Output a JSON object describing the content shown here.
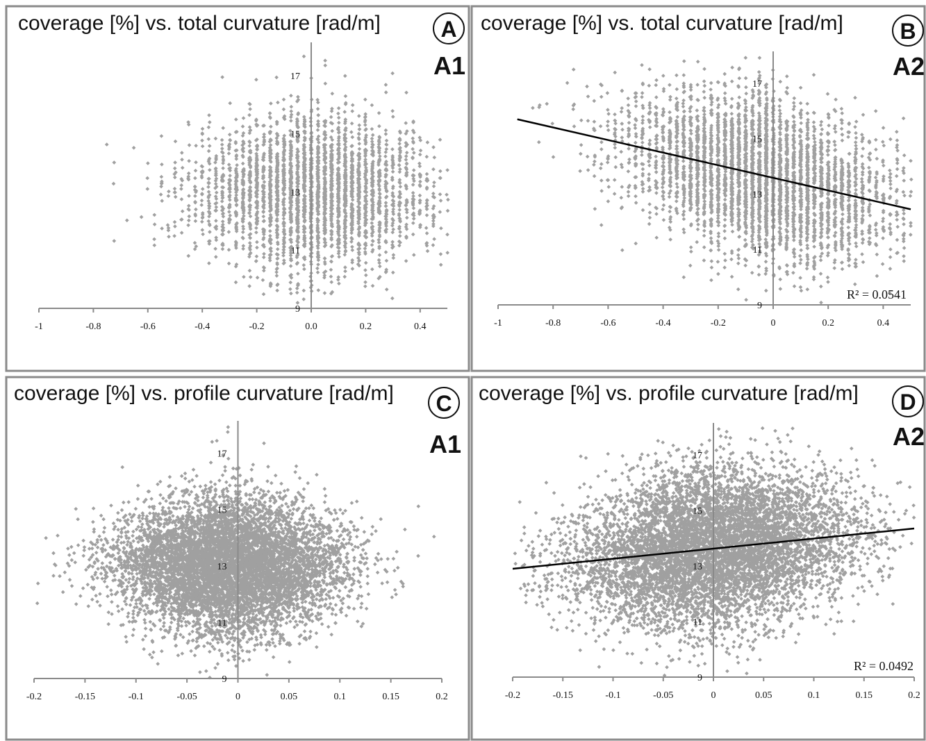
{
  "chart_data": [
    {
      "type": "scatter",
      "panel_letter": "A",
      "panel_code": "A1",
      "title": "coverage [%] vs. total curvature [rad/m]",
      "x_ticks": [
        "-1",
        "-0.8",
        "-0.6",
        "-0.4",
        "-0.2",
        "0.0",
        "0.2",
        "0.4"
      ],
      "y_ticks": [
        "9",
        "11",
        "13",
        "15",
        "17"
      ],
      "xlim": [
        -1,
        0.5
      ],
      "ylim": [
        9,
        18
      ],
      "x_step": 0.025,
      "point_color": "#a0a0a0",
      "distribution": {
        "x_center": 0.0,
        "x_spread": 0.22,
        "x_min": -0.9,
        "x_max": 0.5,
        "y_center": 13.0,
        "y_spread": 1.4
      },
      "n_points": 3200,
      "trendline": null,
      "r_squared": null
    },
    {
      "type": "scatter",
      "panel_letter": "B",
      "panel_code": "A2",
      "title": "coverage [%] vs. total curvature [rad/m]",
      "x_ticks": [
        "-1",
        "-0.8",
        "-0.6",
        "-0.4",
        "-0.2",
        "0",
        "0.2",
        "0.4"
      ],
      "y_ticks": [
        "9",
        "11",
        "13",
        "15",
        "17"
      ],
      "xlim": [
        -1,
        0.5
      ],
      "ylim": [
        9,
        18
      ],
      "x_step": 0.025,
      "point_color": "#a0a0a0",
      "distribution": {
        "x_center": -0.05,
        "x_spread": 0.24,
        "x_min": -0.93,
        "x_max": 0.5,
        "y_center": 13.5,
        "y_spread": 1.5
      },
      "n_points": 4200,
      "trendline": {
        "x": [
          -0.93,
          0.5
        ],
        "y": [
          15.7,
          12.45
        ]
      },
      "r_squared": "R² = 0.0541"
    },
    {
      "type": "scatter",
      "panel_letter": "C",
      "panel_code": "A1",
      "title": "coverage [%] vs. profile curvature [rad/m]",
      "x_ticks": [
        "-0.2",
        "-0.15",
        "-0.1",
        "-0.05",
        "0",
        "0.05",
        "0.1",
        "0.15",
        "0.2"
      ],
      "y_ticks": [
        "9",
        "11",
        "13",
        "15",
        "17"
      ],
      "xlim": [
        -0.2,
        0.2
      ],
      "ylim": [
        9,
        18
      ],
      "x_step": null,
      "point_color": "#a0a0a0",
      "distribution": {
        "x_center": -0.01,
        "x_spread": 0.055,
        "x_min": -0.2,
        "x_max": 0.2,
        "y_center": 13.0,
        "y_spread": 1.3
      },
      "n_points": 7000,
      "trendline": null,
      "r_squared": null
    },
    {
      "type": "scatter",
      "panel_letter": "D",
      "panel_code": "A2",
      "title": "coverage [%] vs. profile curvature [rad/m]",
      "x_ticks": [
        "-0.2",
        "-0.15",
        "-0.1",
        "-0.05",
        "0",
        "0.05",
        "0.1",
        "0.15",
        "0.2"
      ],
      "y_ticks": [
        "9",
        "11",
        "13",
        "15",
        "17"
      ],
      "xlim": [
        -0.2,
        0.2
      ],
      "ylim": [
        9,
        18
      ],
      "x_step": null,
      "point_color": "#a0a0a0",
      "distribution": {
        "x_center": 0.0,
        "x_spread": 0.07,
        "x_min": -0.2,
        "x_max": 0.2,
        "y_center": 13.4,
        "y_spread": 1.5
      },
      "n_points": 7000,
      "trendline": {
        "x": [
          -0.2,
          0.2
        ],
        "y": [
          12.9,
          14.35
        ]
      },
      "r_squared": "R² = 0.0492"
    }
  ]
}
